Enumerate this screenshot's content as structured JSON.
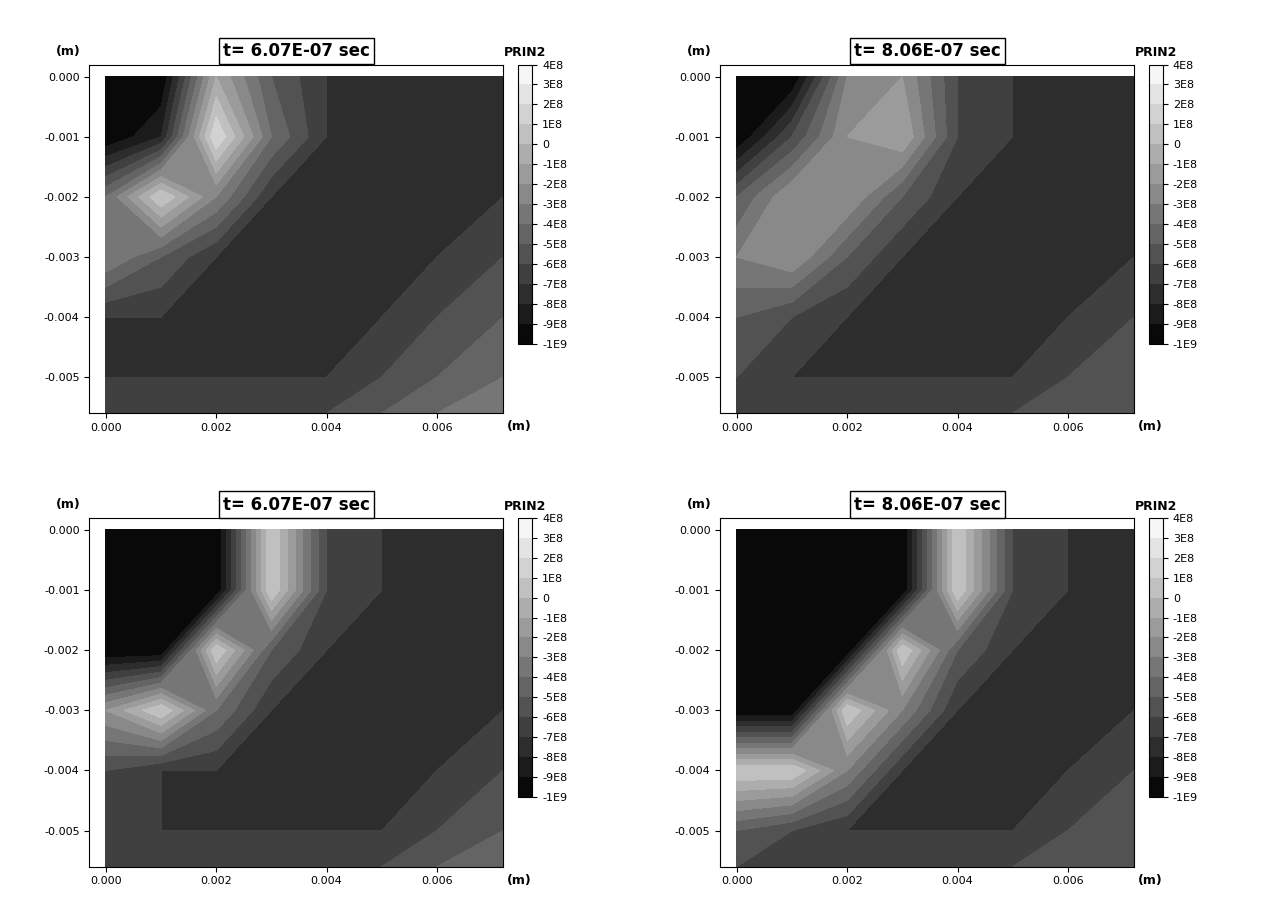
{
  "chart_data": [
    {
      "type": "contour",
      "title": "t= 6.07E-07 sec",
      "xlabel": "(m)",
      "ylabel": "(m)",
      "x": [
        0.0,
        0.001,
        0.002,
        0.003,
        0.004,
        0.005,
        0.006,
        0.0072
      ],
      "y": [
        0.0,
        -0.001,
        -0.002,
        -0.003,
        -0.004,
        -0.005,
        -0.0056
      ],
      "cells": [
        [
          -1000000000.0,
          -1000000000.0,
          -100000000.0,
          -500000000.0,
          -700000000.0,
          -700000000.0,
          -700000000.0,
          -700000000.0
        ],
        [
          -1000000000.0,
          -800000000.0,
          200000000.0,
          -400000000.0,
          -700000000.0,
          -700000000.0,
          -700000000.0,
          -700000000.0
        ],
        [
          -400000000.0,
          100000000.0,
          -300000000.0,
          -700000000.0,
          -700000000.0,
          -700000000.0,
          -700000000.0,
          -700000000.0
        ],
        [
          -300000000.0,
          -500000000.0,
          -700000000.0,
          -700000000.0,
          -700000000.0,
          -700000000.0,
          -700000000.0,
          -600000000.0
        ],
        [
          -700000000.0,
          -700000000.0,
          -700000000.0,
          -700000000.0,
          -700000000.0,
          -700000000.0,
          -600000000.0,
          -500000000.0
        ],
        [
          -700000000.0,
          -700000000.0,
          -700000000.0,
          -700000000.0,
          -700000000.0,
          -600000000.0,
          -500000000.0,
          -400000000.0
        ],
        [
          -600000000.0,
          -600000000.0,
          -600000000.0,
          -600000000.0,
          -600000000.0,
          -500000000.0,
          -400000000.0,
          -300000000.0
        ]
      ],
      "xlim": [
        -0.0003,
        0.0072
      ],
      "ylim": [
        -0.0056,
        0.0002
      ],
      "xticks": [
        {
          "value": 0.0,
          "label": "0.000"
        },
        {
          "value": 0.002,
          "label": "0.002"
        },
        {
          "value": 0.004,
          "label": "0.004"
        },
        {
          "value": 0.006,
          "label": "0.006"
        }
      ],
      "yticks": [
        {
          "value": 0.0,
          "label": "0.000"
        },
        {
          "value": -0.001,
          "label": "-0.001"
        },
        {
          "value": -0.002,
          "label": "-0.002"
        },
        {
          "value": -0.003,
          "label": "-0.003"
        },
        {
          "value": -0.004,
          "label": "-0.004"
        },
        {
          "value": -0.005,
          "label": "-0.005"
        }
      ],
      "colorbar": {
        "label": "PRIN2",
        "range": [
          -1000000000,
          400000000
        ],
        "ticks": [
          {
            "value": 400000000,
            "label": "4E8"
          },
          {
            "value": 300000000,
            "label": "3E8"
          },
          {
            "value": 200000000,
            "label": "2E8"
          },
          {
            "value": 100000000,
            "label": "1E8"
          },
          0,
          {
            "value": -100000000,
            "label": "-1E8"
          },
          {
            "value": -200000000,
            "label": "-2E8"
          },
          {
            "value": -300000000,
            "label": "-3E8"
          },
          {
            "value": -400000000,
            "label": "-4E8"
          },
          {
            "value": -500000000,
            "label": "-5E8"
          },
          {
            "value": -600000000,
            "label": "-6E8"
          },
          {
            "value": -700000000,
            "label": "-7E8"
          },
          {
            "value": -800000000,
            "label": "-8E8"
          },
          {
            "value": -900000000,
            "label": "-9E8"
          },
          {
            "value": -1000000000,
            "label": "-1E9"
          }
        ]
      }
    },
    {
      "type": "contour",
      "title": "t= 8.06E-07 sec",
      "xlabel": "(m)",
      "ylabel": "(m)",
      "x": [
        0.0,
        0.001,
        0.002,
        0.003,
        0.004,
        0.005,
        0.006,
        0.0072
      ],
      "y": [
        0.0,
        -0.001,
        -0.002,
        -0.003,
        -0.004,
        -0.005,
        -0.0056
      ],
      "cells": [
        [
          -1000000000.0,
          -1000000000.0,
          -300000000.0,
          -200000000.0,
          -600000000.0,
          -700000000.0,
          -700000000.0,
          -700000000.0
        ],
        [
          -1000000000.0,
          -600000000.0,
          -200000000.0,
          -100000000.0,
          -600000000.0,
          -700000000.0,
          -700000000.0,
          -700000000.0
        ],
        [
          -500000000.0,
          -200000000.0,
          -200000000.0,
          -500000000.0,
          -700000000.0,
          -700000000.0,
          -700000000.0,
          -700000000.0
        ],
        [
          -300000000.0,
          -200000000.0,
          -500000000.0,
          -700000000.0,
          -700000000.0,
          -700000000.0,
          -700000000.0,
          -700000000.0
        ],
        [
          -500000000.0,
          -600000000.0,
          -700000000.0,
          -700000000.0,
          -700000000.0,
          -700000000.0,
          -700000000.0,
          -600000000.0
        ],
        [
          -600000000.0,
          -700000000.0,
          -700000000.0,
          -700000000.0,
          -700000000.0,
          -700000000.0,
          -600000000.0,
          -500000000.0
        ],
        [
          -600000000.0,
          -600000000.0,
          -600000000.0,
          -600000000.0,
          -600000000.0,
          -600000000.0,
          -500000000.0,
          -500000000.0
        ]
      ],
      "xlim": [
        -0.0003,
        0.0072
      ],
      "ylim": [
        -0.0056,
        0.0002
      ],
      "xticks": [
        {
          "value": 0.0,
          "label": "0.000"
        },
        {
          "value": 0.002,
          "label": "0.002"
        },
        {
          "value": 0.004,
          "label": "0.004"
        },
        {
          "value": 0.006,
          "label": "0.006"
        }
      ],
      "yticks": [
        {
          "value": 0.0,
          "label": "0.000"
        },
        {
          "value": -0.001,
          "label": "-0.001"
        },
        {
          "value": -0.002,
          "label": "-0.002"
        },
        {
          "value": -0.003,
          "label": "-0.003"
        },
        {
          "value": -0.004,
          "label": "-0.004"
        },
        {
          "value": -0.005,
          "label": "-0.005"
        }
      ],
      "colorbar": {
        "label": "PRIN2",
        "range": [
          -1000000000,
          400000000
        ],
        "ticks": [
          {
            "value": 400000000,
            "label": "4E8"
          },
          {
            "value": 300000000,
            "label": "3E8"
          },
          {
            "value": 200000000,
            "label": "2E8"
          },
          {
            "value": 100000000,
            "label": "1E8"
          },
          0,
          {
            "value": -100000000,
            "label": "-1E8"
          },
          {
            "value": -200000000,
            "label": "-2E8"
          },
          {
            "value": -300000000,
            "label": "-3E8"
          },
          {
            "value": -400000000,
            "label": "-4E8"
          },
          {
            "value": -500000000,
            "label": "-5E8"
          },
          {
            "value": -600000000,
            "label": "-6E8"
          },
          {
            "value": -700000000,
            "label": "-7E8"
          },
          {
            "value": -800000000,
            "label": "-8E8"
          },
          {
            "value": -900000000,
            "label": "-9E8"
          },
          {
            "value": -1000000000,
            "label": "-1E9"
          }
        ]
      }
    },
    {
      "type": "contour",
      "title": "t= 6.07E-07 sec",
      "xlabel": "(m)",
      "ylabel": "(m)",
      "x": [
        0.0,
        0.001,
        0.002,
        0.003,
        0.004,
        0.005,
        0.006,
        0.0072
      ],
      "y": [
        0.0,
        -0.001,
        -0.002,
        -0.003,
        -0.004,
        -0.005,
        -0.0056
      ],
      "cells": [
        [
          -1000000000.0,
          -1000000000.0,
          -1000000000.0,
          100000000.0,
          -600000000.0,
          -700000000.0,
          -700000000.0,
          -700000000.0
        ],
        [
          -1000000000.0,
          -1000000000.0,
          -1000000000.0,
          100000000.0,
          -600000000.0,
          -700000000.0,
          -700000000.0,
          -700000000.0
        ],
        [
          -1000000000.0,
          -1000000000.0,
          100000000.0,
          -500000000.0,
          -700000000.0,
          -700000000.0,
          -700000000.0,
          -700000000.0
        ],
        [
          -200000000.0,
          100000000.0,
          -400000000.0,
          -700000000.0,
          -700000000.0,
          -700000000.0,
          -700000000.0,
          -700000000.0
        ],
        [
          -600000000.0,
          -700000000.0,
          -700000000.0,
          -700000000.0,
          -700000000.0,
          -700000000.0,
          -700000000.0,
          -600000000.0
        ],
        [
          -600000000.0,
          -700000000.0,
          -700000000.0,
          -700000000.0,
          -700000000.0,
          -700000000.0,
          -600000000.0,
          -500000000.0
        ],
        [
          -600000000.0,
          -600000000.0,
          -600000000.0,
          -600000000.0,
          -600000000.0,
          -600000000.0,
          -500000000.0,
          -400000000.0
        ]
      ],
      "xlim": [
        -0.0003,
        0.0072
      ],
      "ylim": [
        -0.0056,
        0.0002
      ],
      "xticks": [
        {
          "value": 0.0,
          "label": "0.000"
        },
        {
          "value": 0.002,
          "label": "0.002"
        },
        {
          "value": 0.004,
          "label": "0.004"
        },
        {
          "value": 0.006,
          "label": "0.006"
        }
      ],
      "yticks": [
        {
          "value": 0.0,
          "label": "0.000"
        },
        {
          "value": -0.001,
          "label": "-0.001"
        },
        {
          "value": -0.002,
          "label": "-0.002"
        },
        {
          "value": -0.003,
          "label": "-0.003"
        },
        {
          "value": -0.004,
          "label": "-0.004"
        },
        {
          "value": -0.005,
          "label": "-0.005"
        }
      ],
      "colorbar": {
        "label": "PRIN2",
        "range": [
          -1000000000,
          400000000
        ],
        "ticks": [
          {
            "value": 400000000,
            "label": "4E8"
          },
          {
            "value": 300000000,
            "label": "3E8"
          },
          {
            "value": 200000000,
            "label": "2E8"
          },
          {
            "value": 100000000,
            "label": "1E8"
          },
          0,
          {
            "value": -100000000,
            "label": "-1E8"
          },
          {
            "value": -200000000,
            "label": "-2E8"
          },
          {
            "value": -300000000,
            "label": "-3E8"
          },
          {
            "value": -400000000,
            "label": "-4E8"
          },
          {
            "value": -500000000,
            "label": "-5E8"
          },
          {
            "value": -600000000,
            "label": "-6E8"
          },
          {
            "value": -700000000,
            "label": "-7E8"
          },
          {
            "value": -800000000,
            "label": "-8E8"
          },
          {
            "value": -900000000,
            "label": "-9E8"
          },
          {
            "value": -1000000000,
            "label": "-1E9"
          }
        ]
      }
    },
    {
      "type": "contour",
      "title": "t= 8.06E-07 sec",
      "xlabel": "(m)",
      "ylabel": "(m)",
      "x": [
        0.0,
        0.001,
        0.002,
        0.003,
        0.004,
        0.005,
        0.006,
        0.0072
      ],
      "y": [
        0.0,
        -0.001,
        -0.002,
        -0.003,
        -0.004,
        -0.005,
        -0.0056
      ],
      "cells": [
        [
          -1000000000.0,
          -1000000000.0,
          -1000000000.0,
          -1000000000.0,
          100000000.0,
          -600000000.0,
          -700000000.0,
          -700000000.0
        ],
        [
          -1000000000.0,
          -1000000000.0,
          -1000000000.0,
          -1000000000.0,
          100000000.0,
          -600000000.0,
          -700000000.0,
          -700000000.0
        ],
        [
          -1000000000.0,
          -1000000000.0,
          -1000000000.0,
          100000000.0,
          -500000000.0,
          -700000000.0,
          -700000000.0,
          -700000000.0
        ],
        [
          -1000000000.0,
          -1000000000.0,
          100000000.0,
          -300000000.0,
          -700000000.0,
          -700000000.0,
          -700000000.0,
          -700000000.0
        ],
        [
          100000000.0,
          100000000.0,
          -300000000.0,
          -700000000.0,
          -700000000.0,
          -700000000.0,
          -700000000.0,
          -600000000.0
        ],
        [
          -500000000.0,
          -600000000.0,
          -700000000.0,
          -700000000.0,
          -700000000.0,
          -700000000.0,
          -600000000.0,
          -500000000.0
        ],
        [
          -600000000.0,
          -600000000.0,
          -600000000.0,
          -600000000.0,
          -600000000.0,
          -600000000.0,
          -500000000.0,
          -500000000.0
        ]
      ],
      "xlim": [
        -0.0003,
        0.0072
      ],
      "ylim": [
        -0.0056,
        0.0002
      ],
      "xticks": [
        {
          "value": 0.0,
          "label": "0.000"
        },
        {
          "value": 0.002,
          "label": "0.002"
        },
        {
          "value": 0.004,
          "label": "0.004"
        },
        {
          "value": 0.006,
          "label": "0.006"
        }
      ],
      "yticks": [
        {
          "value": 0.0,
          "label": "0.000"
        },
        {
          "value": -0.001,
          "label": "-0.001"
        },
        {
          "value": -0.002,
          "label": "-0.002"
        },
        {
          "value": -0.003,
          "label": "-0.003"
        },
        {
          "value": -0.004,
          "label": "-0.004"
        },
        {
          "value": -0.005,
          "label": "-0.005"
        }
      ],
      "colorbar": {
        "label": "PRIN2",
        "range": [
          -1000000000,
          400000000
        ],
        "ticks": [
          {
            "value": 400000000,
            "label": "4E8"
          },
          {
            "value": 300000000,
            "label": "3E8"
          },
          {
            "value": 200000000,
            "label": "2E8"
          },
          {
            "value": 100000000,
            "label": "1E8"
          },
          0,
          {
            "value": -100000000,
            "label": "-1E8"
          },
          {
            "value": -200000000,
            "label": "-2E8"
          },
          {
            "value": -300000000,
            "label": "-3E8"
          },
          {
            "value": -400000000,
            "label": "-4E8"
          },
          {
            "value": -500000000,
            "label": "-5E8"
          },
          {
            "value": -600000000,
            "label": "-6E8"
          },
          {
            "value": -700000000,
            "label": "-7E8"
          },
          {
            "value": -800000000,
            "label": "-8E8"
          },
          {
            "value": -900000000,
            "label": "-9E8"
          },
          {
            "value": -1000000000,
            "label": "-1E9"
          }
        ]
      }
    }
  ]
}
